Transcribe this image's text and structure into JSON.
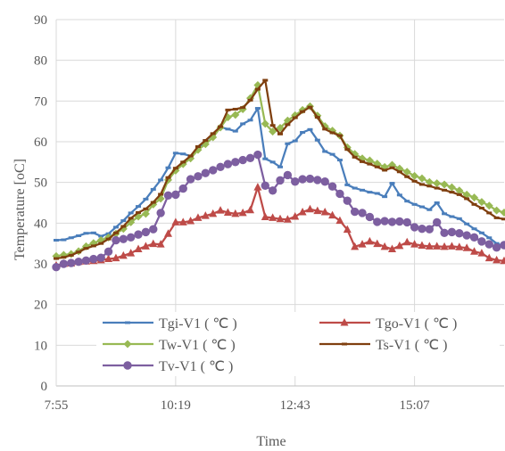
{
  "chart_data": {
    "type": "line",
    "xlabel": "Time",
    "ylabel": "Temperature [oC]",
    "ylim": [
      0,
      90
    ],
    "yticks": [
      0,
      10,
      20,
      30,
      40,
      50,
      60,
      70,
      80,
      90
    ],
    "x_tick_labels": [
      "7:55",
      "10:19",
      "12:43",
      "15:07"
    ],
    "x_tick_positions": [
      0,
      16,
      32,
      48
    ],
    "n_points": 61,
    "grid": true,
    "legend_position": "bottom-inside",
    "series": [
      {
        "name": "Tgi-V1 ( ℃ )",
        "color": "#4a7ebb",
        "marker": "dash",
        "values": [
          35.8,
          35.9,
          36.4,
          36.9,
          37.5,
          37.6,
          36.8,
          37.4,
          39.0,
          40.6,
          42.5,
          44.1,
          45.9,
          48.3,
          50.6,
          53.6,
          57.2,
          57.0,
          56.5,
          58.2,
          60.3,
          61.7,
          63.6,
          63.1,
          62.6,
          64.4,
          65.3,
          68.2,
          55.8,
          55.0,
          53.8,
          59.5,
          60.2,
          62.3,
          63.0,
          60.4,
          57.6,
          56.9,
          55.5,
          49.4,
          48.6,
          48.1,
          47.6,
          47.3,
          46.5,
          49.8,
          46.9,
          45.4,
          44.6,
          44.0,
          43.3,
          45.0,
          42.3,
          41.6,
          41.1,
          39.8,
          38.6,
          37.6,
          36.4,
          35.0,
          34.3
        ]
      },
      {
        "name": "Tgo-V1 ( ℃ )",
        "color": "#be4b48",
        "marker": "triangle",
        "values": [
          29.6,
          30.0,
          30.1,
          30.5,
          30.6,
          30.7,
          30.9,
          31.2,
          31.4,
          32.0,
          32.6,
          33.6,
          34.3,
          34.9,
          34.8,
          37.4,
          40.2,
          40.2,
          40.5,
          41.3,
          41.8,
          42.3,
          43.1,
          42.6,
          42.3,
          42.5,
          43.2,
          48.8,
          41.5,
          41.3,
          41.0,
          40.9,
          41.6,
          42.7,
          43.4,
          43.0,
          42.7,
          41.9,
          40.6,
          38.4,
          34.2,
          34.8,
          35.5,
          34.9,
          34.2,
          33.6,
          34.4,
          35.3,
          34.8,
          34.5,
          34.3,
          34.3,
          34.2,
          34.3,
          34.1,
          33.9,
          33.0,
          32.6,
          31.4,
          30.9,
          30.7
        ]
      },
      {
        "name": "Tw-V1 ( ℃ )",
        "color": "#98b954",
        "marker": "diamond",
        "values": [
          31.9,
          32.2,
          32.4,
          33.1,
          34.3,
          35.1,
          35.8,
          36.5,
          37.4,
          38.6,
          40.2,
          41.6,
          42.3,
          44.6,
          46.0,
          50.6,
          52.9,
          54.5,
          55.9,
          58.0,
          59.4,
          61.1,
          63.5,
          66.0,
          66.6,
          68.0,
          70.7,
          73.9,
          64.4,
          62.5,
          63.4,
          65.2,
          66.5,
          67.8,
          68.7,
          66.4,
          63.8,
          62.7,
          61.5,
          58.6,
          57.0,
          55.9,
          55.4,
          54.6,
          53.8,
          54.3,
          53.4,
          52.6,
          51.6,
          51.0,
          50.1,
          49.8,
          49.5,
          48.8,
          48.0,
          47.0,
          46.3,
          45.2,
          44.3,
          43.1,
          42.6
        ]
      },
      {
        "name": "Ts-V1 ( ℃ )",
        "color": "#7f3f0f",
        "marker": "dash",
        "values": [
          31.3,
          31.6,
          32.1,
          32.9,
          33.8,
          34.4,
          35.0,
          36.1,
          37.6,
          39.2,
          41.2,
          42.6,
          43.5,
          45.1,
          47.1,
          51.2,
          53.5,
          55.0,
          56.5,
          58.8,
          60.3,
          62.0,
          63.7,
          67.8,
          68.0,
          68.4,
          70.2,
          72.9,
          75.1,
          64.0,
          61.9,
          64.2,
          65.9,
          67.4,
          68.5,
          66.0,
          63.1,
          62.2,
          61.5,
          58.1,
          56.2,
          55.1,
          54.5,
          53.8,
          53.0,
          53.6,
          52.6,
          51.4,
          50.3,
          49.5,
          49.1,
          48.6,
          48.1,
          47.6,
          47.0,
          46.0,
          44.6,
          43.7,
          42.5,
          41.3,
          41.0
        ]
      },
      {
        "name": "Tv-V1 ( ℃ )",
        "color": "#7d5fa0",
        "marker": "circle",
        "values": [
          29.2,
          30.0,
          30.2,
          30.5,
          30.8,
          31.2,
          31.5,
          33.0,
          35.8,
          36.1,
          36.5,
          37.2,
          37.8,
          38.5,
          42.5,
          46.8,
          47.0,
          48.5,
          50.8,
          51.5,
          52.3,
          53.0,
          53.8,
          54.5,
          55.0,
          55.5,
          56.0,
          56.8,
          49.2,
          48.0,
          50.5,
          51.8,
          50.2,
          50.8,
          50.9,
          50.6,
          50.2,
          49.0,
          47.2,
          45.5,
          42.8,
          42.5,
          41.5,
          40.3,
          40.5,
          40.3,
          40.4,
          40.2,
          39.0,
          38.6,
          38.5,
          40.2,
          37.6,
          37.8,
          37.5,
          37.0,
          36.5,
          35.5,
          34.8,
          34.0,
          34.6
        ]
      }
    ]
  }
}
